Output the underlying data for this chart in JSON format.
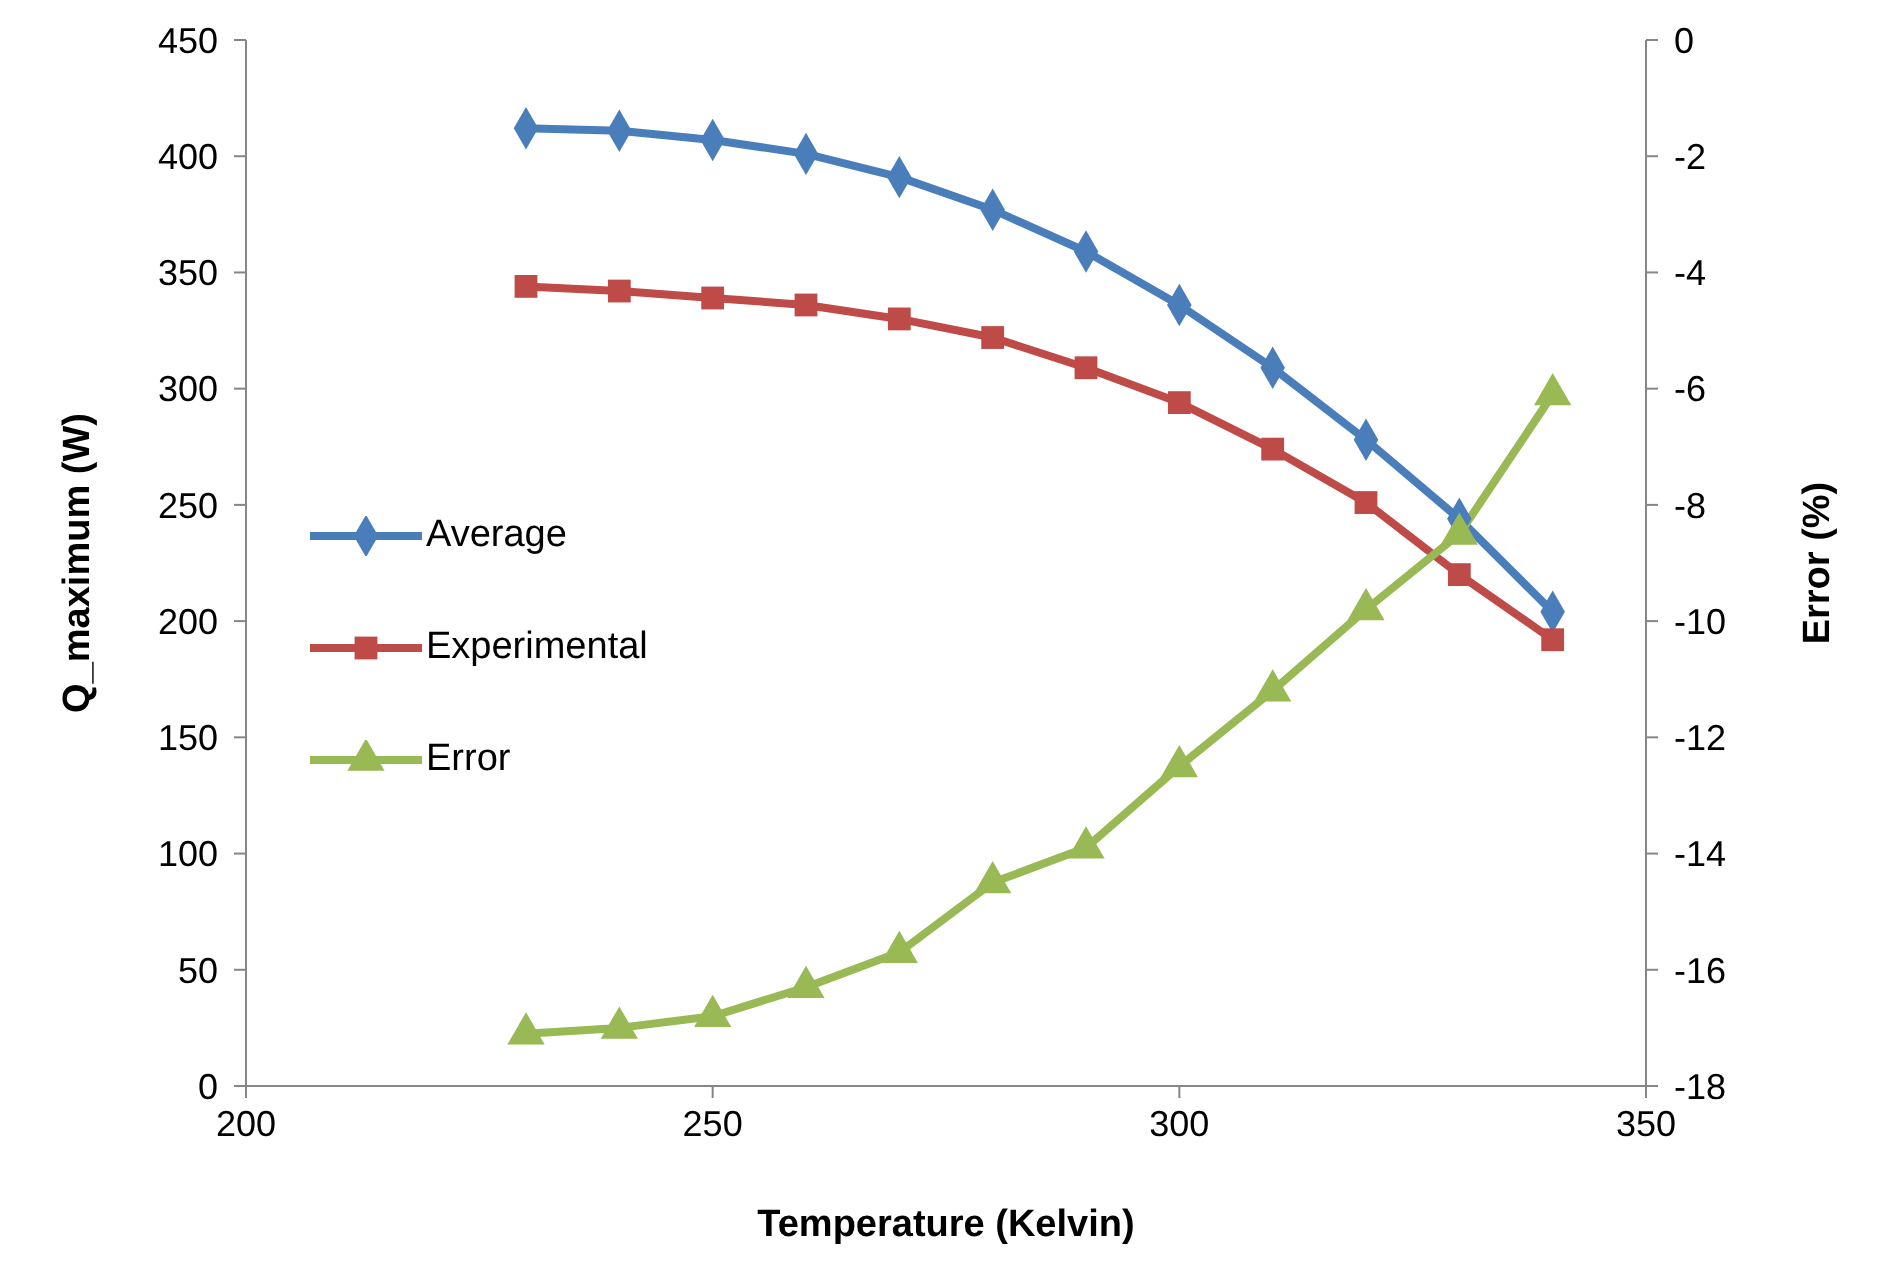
{
  "chart_data": {
    "type": "line",
    "xlabel": "Temperature (Kelvin)",
    "ylabel": "Q_maximum (W)",
    "y2label": "Error (%)",
    "x": [
      230,
      240,
      250,
      260,
      270,
      280,
      290,
      300,
      310,
      320,
      330,
      340
    ],
    "xlim": [
      200,
      350
    ],
    "xticks": [
      200,
      250,
      300,
      350
    ],
    "ylim": [
      0,
      450
    ],
    "yticks": [
      0,
      50,
      100,
      150,
      200,
      250,
      300,
      350,
      400,
      450
    ],
    "y2lim": [
      -18,
      0
    ],
    "y2ticks": [
      -18,
      -16,
      -14,
      -12,
      -10,
      -8,
      -6,
      -4,
      -2,
      0
    ],
    "grid": false,
    "legend": "left",
    "line_style": "solid",
    "series": [
      {
        "name": "Average",
        "color": "#4a7ebb",
        "marker": "diamond",
        "values": [
          412,
          411,
          407,
          401,
          391,
          377,
          359,
          336,
          309,
          278,
          244,
          204
        ]
      },
      {
        "name": "Experimental",
        "color": "#be4b48",
        "marker": "square",
        "values": [
          344,
          342,
          339,
          336,
          330,
          322,
          309,
          294,
          274,
          251,
          220,
          192
        ]
      },
      {
        "name": "Error",
        "color": "#98b954",
        "marker": "triangle",
        "axis": "y2",
        "values": [
          -17.1,
          -17.0,
          -16.8,
          -16.3,
          -15.7,
          -14.5,
          -13.9,
          -12.5,
          -11.2,
          -9.8,
          -8.5,
          -6.1
        ]
      }
    ]
  }
}
